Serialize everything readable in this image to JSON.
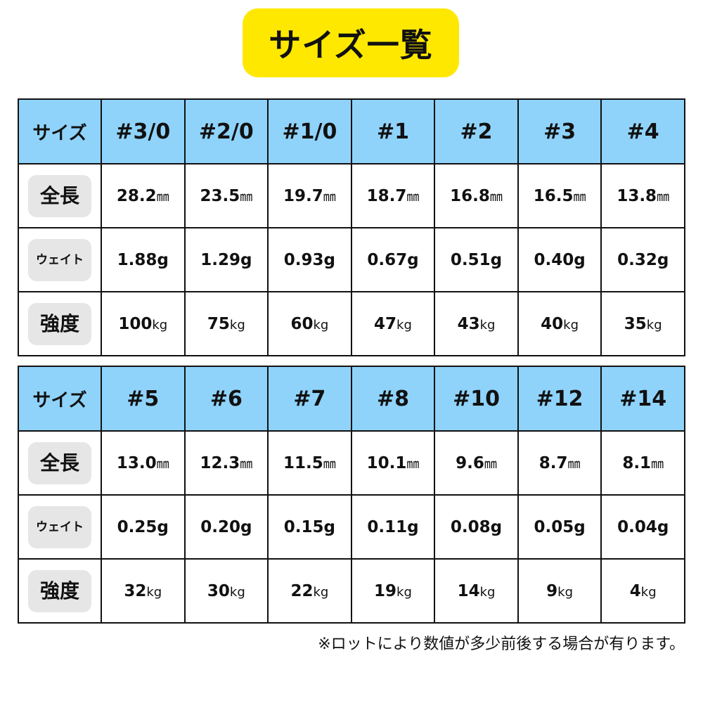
{
  "title": "サイズ一覧",
  "colors": {
    "title_bg": "#ffe800",
    "header_bg": "#8fd3fb",
    "label_bg": "#e6e6e6"
  },
  "tables": [
    {
      "header_label": "サイズ",
      "sizes": [
        "#3/0",
        "#2/0",
        "#1/0",
        "#1",
        "#2",
        "#3",
        "#4"
      ],
      "rows": [
        {
          "label": "全長",
          "unit": "㎜",
          "values": [
            "28.2",
            "23.5",
            "19.7",
            "18.7",
            "16.8",
            "16.5",
            "13.8"
          ]
        },
        {
          "label": "ウェイト",
          "unit": "",
          "values": [
            "1.88g",
            "1.29g",
            "0.93g",
            "0.67g",
            "0.51g",
            "0.40g",
            "0.32g"
          ]
        },
        {
          "label": "強度",
          "unit": "kg",
          "values": [
            "100",
            "75",
            "60",
            "47",
            "43",
            "40",
            "35"
          ]
        }
      ]
    },
    {
      "header_label": "サイズ",
      "sizes": [
        "#5",
        "#6",
        "#7",
        "#8",
        "#10",
        "#12",
        "#14"
      ],
      "rows": [
        {
          "label": "全長",
          "unit": "㎜",
          "values": [
            "13.0",
            "12.3",
            "11.5",
            "10.1",
            "9.6",
            "8.7",
            "8.1"
          ]
        },
        {
          "label": "ウェイト",
          "unit": "",
          "values": [
            "0.25g",
            "0.20g",
            "0.15g",
            "0.11g",
            "0.08g",
            "0.05g",
            "0.04g"
          ]
        },
        {
          "label": "強度",
          "unit": "kg",
          "values": [
            "32",
            "30",
            "22",
            "19",
            "14",
            "9",
            "4"
          ]
        }
      ]
    }
  ],
  "note": "※ロットにより数値が多少前後する場合が有ります。"
}
